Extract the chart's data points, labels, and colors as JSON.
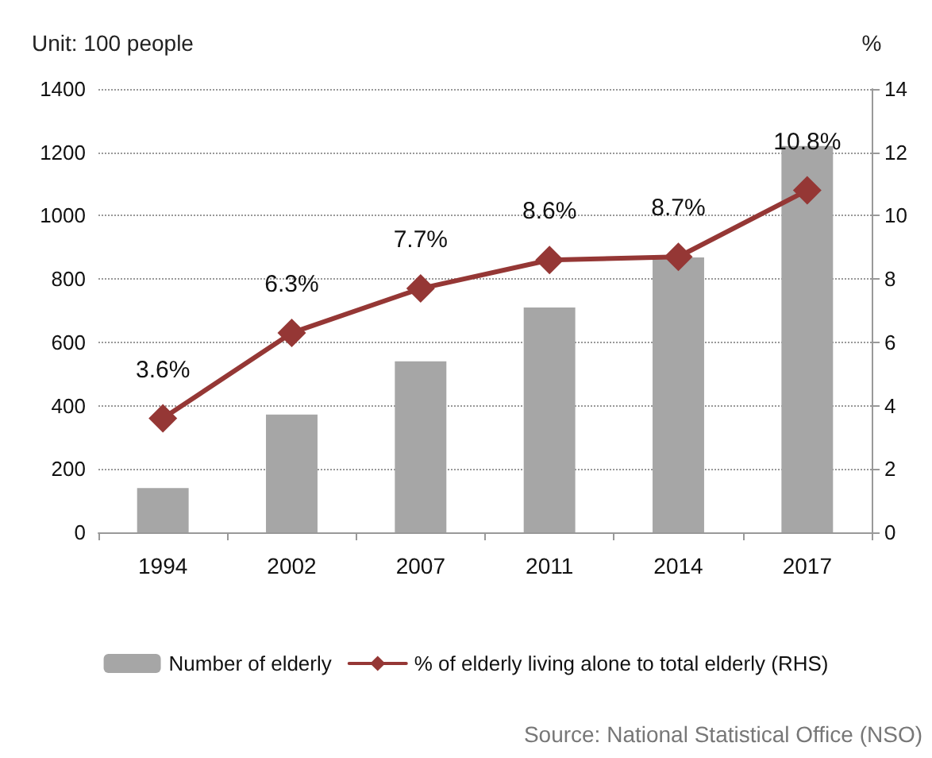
{
  "chart_data": {
    "type": "bar",
    "ylabel": "Unit: 100 people",
    "y2label": "%",
    "categories": [
      "1994",
      "2002",
      "2007",
      "2011",
      "2014",
      "2017"
    ],
    "series": [
      {
        "name": "Number of elderly",
        "color": "#a6a6a6",
        "values": [
          140,
          372,
          540,
          710,
          868,
          1220
        ]
      },
      {
        "name": "% of elderly living alone to total elderly (RHS)",
        "type": "line",
        "axis": "y2",
        "color": "#953735",
        "values": [
          3.6,
          6.3,
          7.7,
          8.6,
          8.7,
          10.8
        ],
        "value_labels": [
          "3.6%",
          "6.3%",
          "7.7%",
          "8.6%",
          "8.7%",
          "10.8%"
        ]
      }
    ],
    "ylim": [
      0,
      1400
    ],
    "yticks": [
      0,
      200,
      400,
      600,
      800,
      1000,
      1200,
      1400
    ],
    "y2lim": [
      0,
      14
    ],
    "y2ticks": [
      0,
      2,
      4,
      6,
      8,
      10,
      12,
      14
    ],
    "grid": "y",
    "legend": "bottom",
    "marker": "diamond",
    "line_style": "solid",
    "annotations": [
      "Source: National Statistical Office (NSO)"
    ]
  }
}
